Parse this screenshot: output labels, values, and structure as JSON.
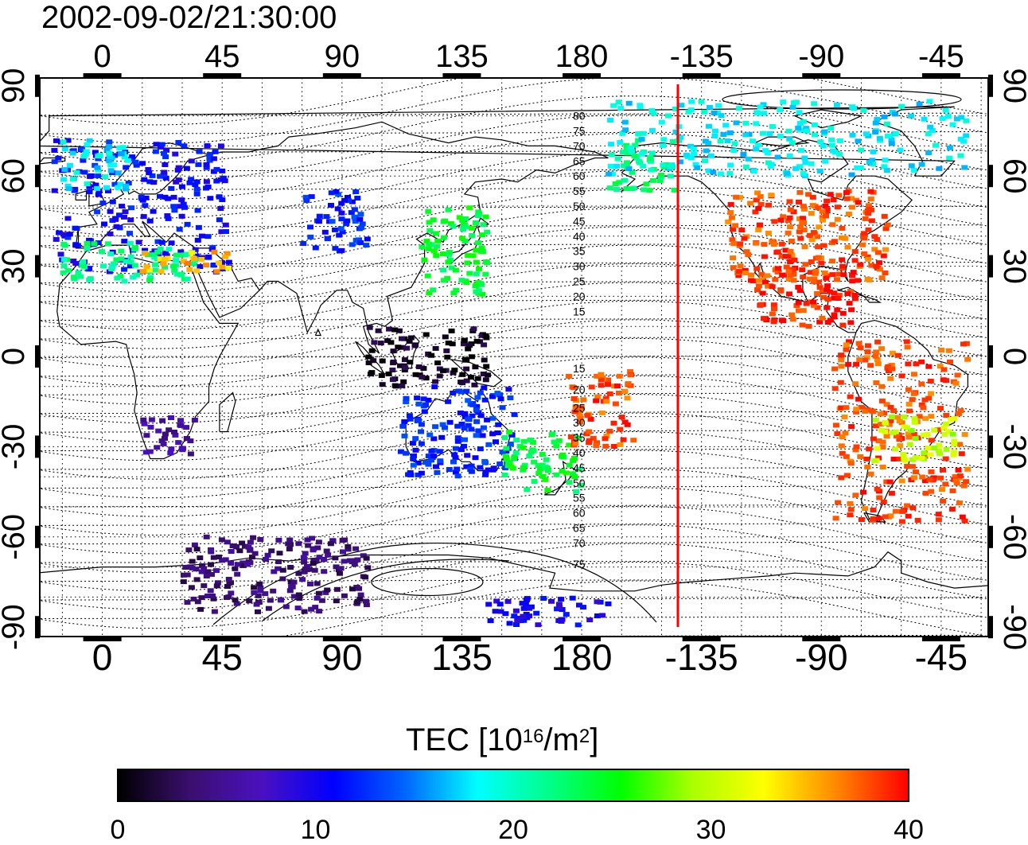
{
  "timestamp": "2002-09-02/21:30:00",
  "lon_ticks": [
    "0",
    "45",
    "90",
    "135",
    "180",
    "-135",
    "-90",
    "-45"
  ],
  "lat_ticks": [
    "90",
    "60",
    "30",
    "0",
    "-30",
    "-60",
    "-90"
  ],
  "contour_labels": [
    "80",
    "75",
    "70",
    "65",
    "60",
    "55",
    "50",
    "45",
    "40",
    "35",
    "30",
    "25",
    "20",
    "15",
    "15",
    "20",
    "25",
    "30",
    "35",
    "40",
    "45",
    "50",
    "55",
    "60",
    "65",
    "70",
    "75"
  ],
  "colorbar": {
    "title_prefix": "TEC  [10",
    "title_exp1": "16",
    "title_mid": "/m",
    "title_exp2": "2",
    "title_suffix": "]",
    "ticks": [
      "0",
      "10",
      "20",
      "30",
      "40"
    ],
    "colors": [
      "#000000",
      "#3a0f6e",
      "#4a10c0",
      "#0000ff",
      "#0066ff",
      "#00ffff",
      "#00ff88",
      "#00ff00",
      "#aaff00",
      "#ffff00",
      "#ff8800",
      "#ff0000"
    ]
  },
  "map": {
    "lon_range": [
      -25,
      335
    ],
    "lat_range": [
      -90,
      90
    ],
    "terminator_lon": -142,
    "terminator_color": "#ff0000"
  },
  "chart_data": {
    "type": "heatmap",
    "title": "2002-09-02/21:30:00",
    "colorbar_label": "TEC [10^16/m^2]",
    "colorbar_range": [
      0,
      40
    ],
    "xaxis_ticks": [
      0,
      45,
      90,
      135,
      180,
      -135,
      -90,
      -45
    ],
    "yaxis_ticks": [
      90,
      60,
      30,
      0,
      -30,
      -60,
      -90
    ],
    "regions": [
      {
        "lon": [
          -18,
          48
        ],
        "lat": [
          28,
          72
        ],
        "tec": 11
      },
      {
        "lon": [
          -15,
          35
        ],
        "lat": [
          25,
          38
        ],
        "tec": 22
      },
      {
        "lon": [
          15,
          48
        ],
        "lat": [
          28,
          35
        ],
        "tec": 35
      },
      {
        "lon": [
          -15,
          10
        ],
        "lat": [
          55,
          72
        ],
        "tec": 18
      },
      {
        "lon": [
          75,
          100
        ],
        "lat": [
          35,
          55
        ],
        "tec": 12
      },
      {
        "lon": [
          100,
          145
        ],
        "lat": [
          -10,
          10
        ],
        "tec": 1
      },
      {
        "lon": [
          120,
          145
        ],
        "lat": [
          20,
          50
        ],
        "tec": 24
      },
      {
        "lon": [
          15,
          35
        ],
        "lat": [
          -35,
          -20
        ],
        "tec": 6
      },
      {
        "lon": [
          112,
          155
        ],
        "lat": [
          -40,
          -10
        ],
        "tec": 12
      },
      {
        "lon": [
          150,
          180
        ],
        "lat": [
          -45,
          -25
        ],
        "tec": 24
      },
      {
        "lon": [
          175,
          200
        ],
        "lat": [
          -30,
          -5
        ],
        "tec": 38
      },
      {
        "lon": [
          190,
          215
        ],
        "lat": [
          55,
          72
        ],
        "tec": 22
      },
      {
        "lon": [
          -125,
          -65
        ],
        "lat": [
          25,
          55
        ],
        "tec": 38
      },
      {
        "lon": [
          -115,
          -75
        ],
        "lat": [
          10,
          30
        ],
        "tec": 39
      },
      {
        "lon": [
          -85,
          -35
        ],
        "lat": [
          -55,
          5
        ],
        "tec": 38
      },
      {
        "lon": [
          -70,
          -40
        ],
        "lat": [
          -35,
          -20
        ],
        "tec": 30
      },
      {
        "lon": [
          -170,
          -35
        ],
        "lat": [
          60,
          85
        ],
        "tec": 18
      },
      {
        "lon": [
          30,
          100
        ],
        "lat": [
          -85,
          -60
        ],
        "tec": 4
      },
      {
        "lon": [
          145,
          190
        ],
        "lat": [
          -90,
          -80
        ],
        "tec": 10
      }
    ]
  }
}
